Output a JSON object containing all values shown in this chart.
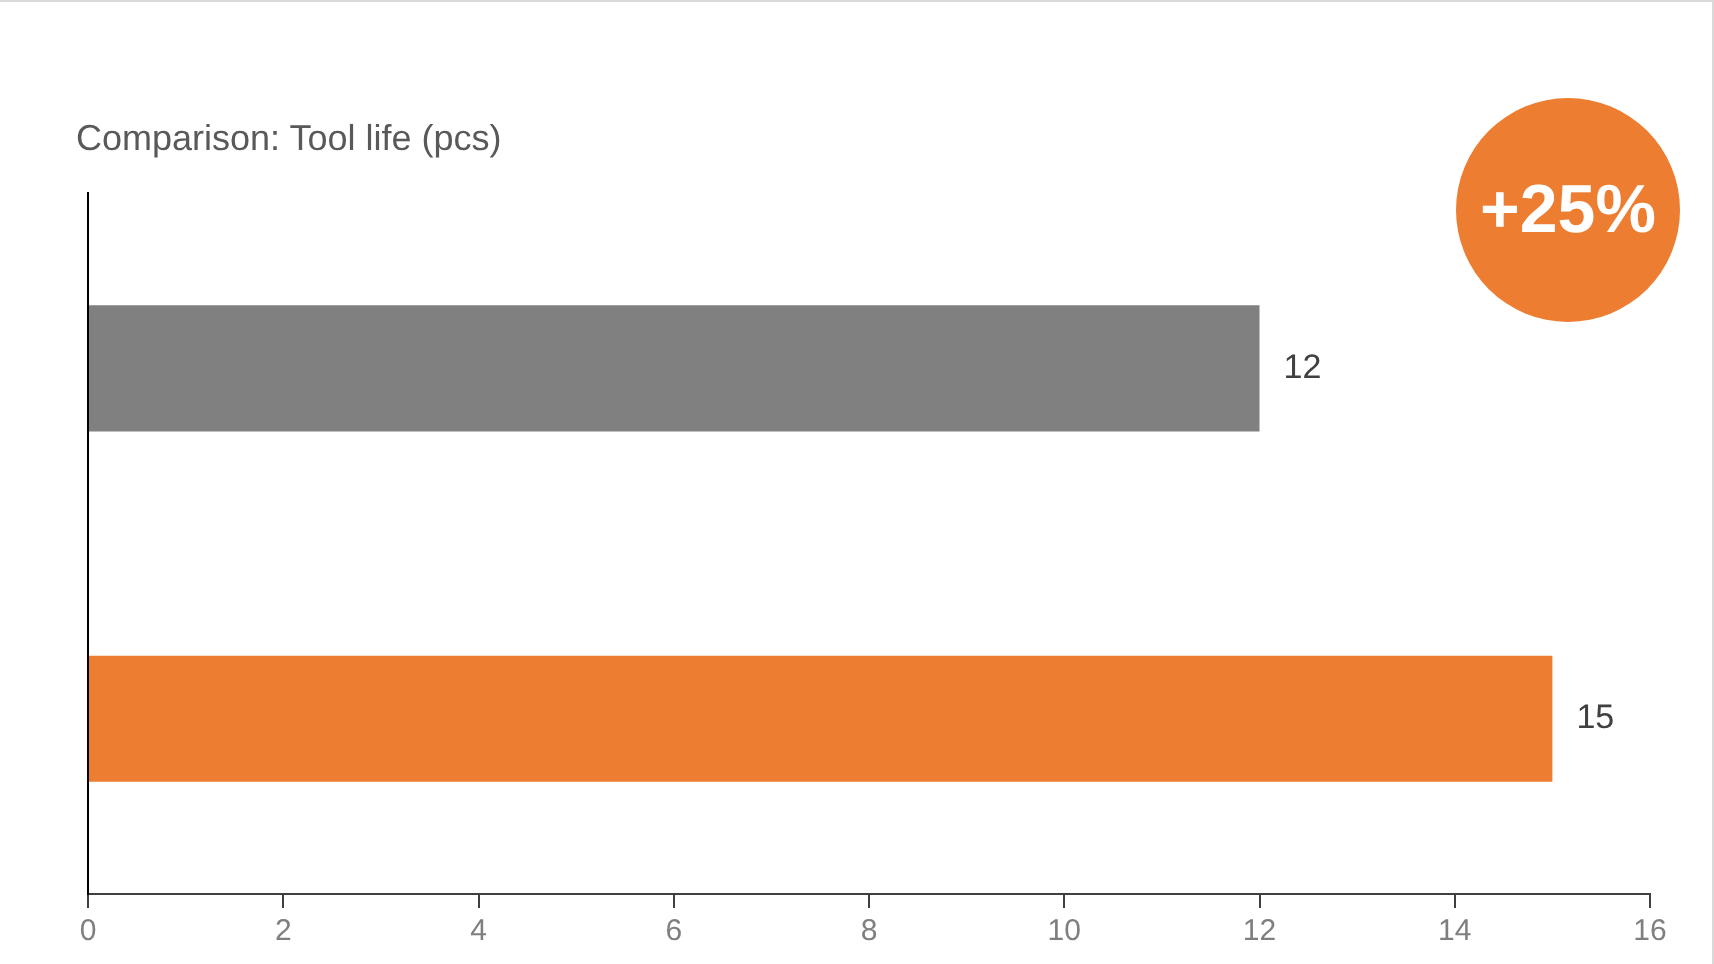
{
  "chart_data": {
    "type": "bar",
    "orientation": "horizontal",
    "title": "Comparison: Tool life (pcs)",
    "categories": [
      null,
      null
    ],
    "values": [
      12,
      15
    ],
    "colors": [
      "#808080",
      "#ed7d31"
    ],
    "xlim": [
      0,
      16
    ],
    "xticks": [
      0,
      2,
      4,
      6,
      8,
      10,
      12,
      14,
      16
    ],
    "grid": false,
    "legend": false,
    "data_labels": true,
    "annotations": [
      "+25%"
    ]
  }
}
